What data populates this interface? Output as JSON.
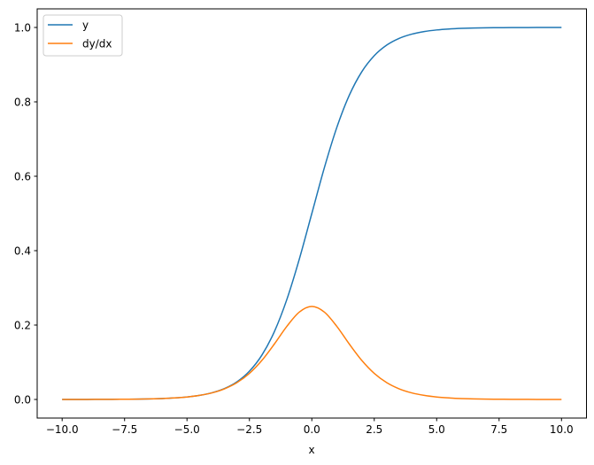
{
  "chart_data": {
    "type": "line",
    "title": "",
    "xlabel": "x",
    "ylabel": "",
    "xlim": [
      -11,
      11
    ],
    "ylim": [
      -0.05,
      1.05
    ],
    "xticks": [
      -10.0,
      -7.5,
      -5.0,
      -2.5,
      0.0,
      2.5,
      5.0,
      7.5,
      10.0
    ],
    "xtick_labels": [
      "−10.0",
      "−7.5",
      "−5.0",
      "−2.5",
      "0.0",
      "2.5",
      "5.0",
      "7.5",
      "10.0"
    ],
    "yticks": [
      0.0,
      0.2,
      0.4,
      0.6,
      0.8,
      1.0
    ],
    "ytick_labels": [
      "0.0",
      "0.2",
      "0.4",
      "0.6",
      "0.8",
      "1.0"
    ],
    "grid": false,
    "legend_placement": "upper-left",
    "x": [
      -10,
      -9.5,
      -9,
      -8.5,
      -8,
      -7.5,
      -7,
      -6.5,
      -6,
      -5.5,
      -5,
      -4.5,
      -4,
      -3.5,
      -3,
      -2.5,
      -2,
      -1.5,
      -1,
      -0.5,
      0,
      0.5,
      1,
      1.5,
      2,
      2.5,
      3,
      3.5,
      4,
      4.5,
      5,
      5.5,
      6,
      6.5,
      7,
      7.5,
      8,
      8.5,
      9,
      9.5,
      10
    ],
    "series": [
      {
        "name": "y",
        "color": "#1f77b4",
        "values": [
          0.0,
          0.0001,
          0.0001,
          0.0002,
          0.0003,
          0.0006,
          0.0009,
          0.0015,
          0.0025,
          0.0041,
          0.0067,
          0.011,
          0.018,
          0.0293,
          0.0474,
          0.0759,
          0.1192,
          0.1824,
          0.2689,
          0.3775,
          0.5,
          0.6225,
          0.7311,
          0.8176,
          0.8808,
          0.9241,
          0.9526,
          0.9707,
          0.982,
          0.989,
          0.9933,
          0.9959,
          0.9975,
          0.9985,
          0.9991,
          0.9994,
          0.9997,
          0.9998,
          0.9999,
          0.9999,
          1.0
        ]
      },
      {
        "name": "dy/dx",
        "color": "#ff7f0e",
        "values": [
          0.0,
          0.0001,
          0.0001,
          0.0002,
          0.0003,
          0.0006,
          0.0009,
          0.0015,
          0.0025,
          0.0041,
          0.0066,
          0.0109,
          0.0177,
          0.0285,
          0.0452,
          0.0701,
          0.105,
          0.1491,
          0.1966,
          0.235,
          0.25,
          0.235,
          0.1966,
          0.1491,
          0.105,
          0.0701,
          0.0452,
          0.0285,
          0.0177,
          0.0109,
          0.0066,
          0.0041,
          0.0025,
          0.0015,
          0.0009,
          0.0006,
          0.0003,
          0.0002,
          0.0001,
          0.0001,
          0.0
        ]
      }
    ]
  }
}
